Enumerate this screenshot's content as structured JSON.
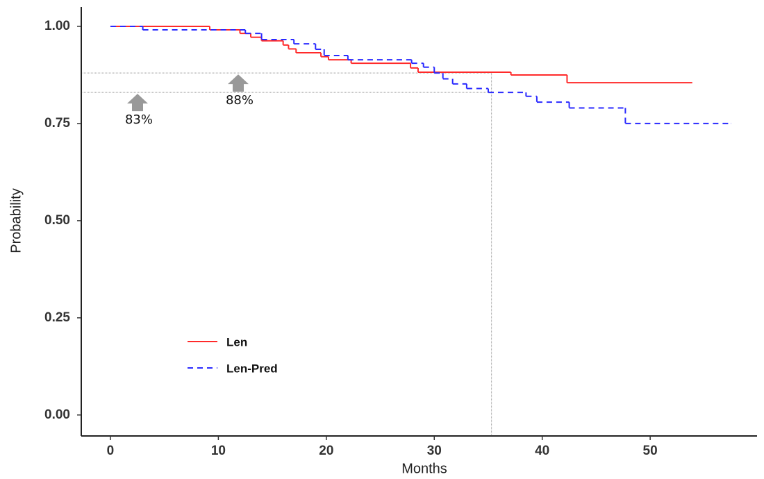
{
  "chart_data": {
    "type": "step",
    "x_label": "Months",
    "y_label": "Probability",
    "xlim": [
      -2.7,
      59.9
    ],
    "ylim": [
      -0.054,
      1.05
    ],
    "xticks": [
      0,
      10,
      20,
      30,
      40,
      50
    ],
    "yticks": [
      {
        "value": 0,
        "label": "0.00"
      },
      0.25,
      {
        "value": 0.5,
        "label": "0.50"
      },
      0.75,
      {
        "value": 1,
        "label": "1.00"
      }
    ],
    "grid": false,
    "legend": "lower left",
    "series": [
      {
        "name": "Len",
        "color": "#ff2a2a",
        "dash": false,
        "x": [
          0,
          9.2,
          12,
          13,
          14,
          16,
          16.5,
          17.2,
          19.5,
          20.2,
          22.3,
          27.8,
          28.5,
          37.1,
          42.3,
          53.9
        ],
        "values": [
          1.0,
          0.991,
          0.982,
          0.972,
          0.963,
          0.952,
          0.942,
          0.932,
          0.922,
          0.914,
          0.905,
          0.893,
          0.882,
          0.875,
          0.855,
          0.855
        ]
      },
      {
        "name": "Len-Pred",
        "color": "#2a2aff",
        "dash": true,
        "x": [
          0,
          3,
          12.5,
          14,
          17,
          19,
          19.8,
          22,
          27.9,
          29,
          30,
          30.8,
          31.7,
          33,
          35,
          38.5,
          39.5,
          42.5,
          47.7,
          57.5
        ],
        "values": [
          1.0,
          0.991,
          0.982,
          0.966,
          0.955,
          0.941,
          0.925,
          0.914,
          0.905,
          0.895,
          0.88,
          0.865,
          0.852,
          0.84,
          0.83,
          0.82,
          0.805,
          0.79,
          0.75,
          0.75
        ]
      }
    ],
    "reference_lines": {
      "y": [
        0.83,
        0.88
      ],
      "x": 35.3
    },
    "annotations": [
      "83%",
      "88%"
    ]
  }
}
